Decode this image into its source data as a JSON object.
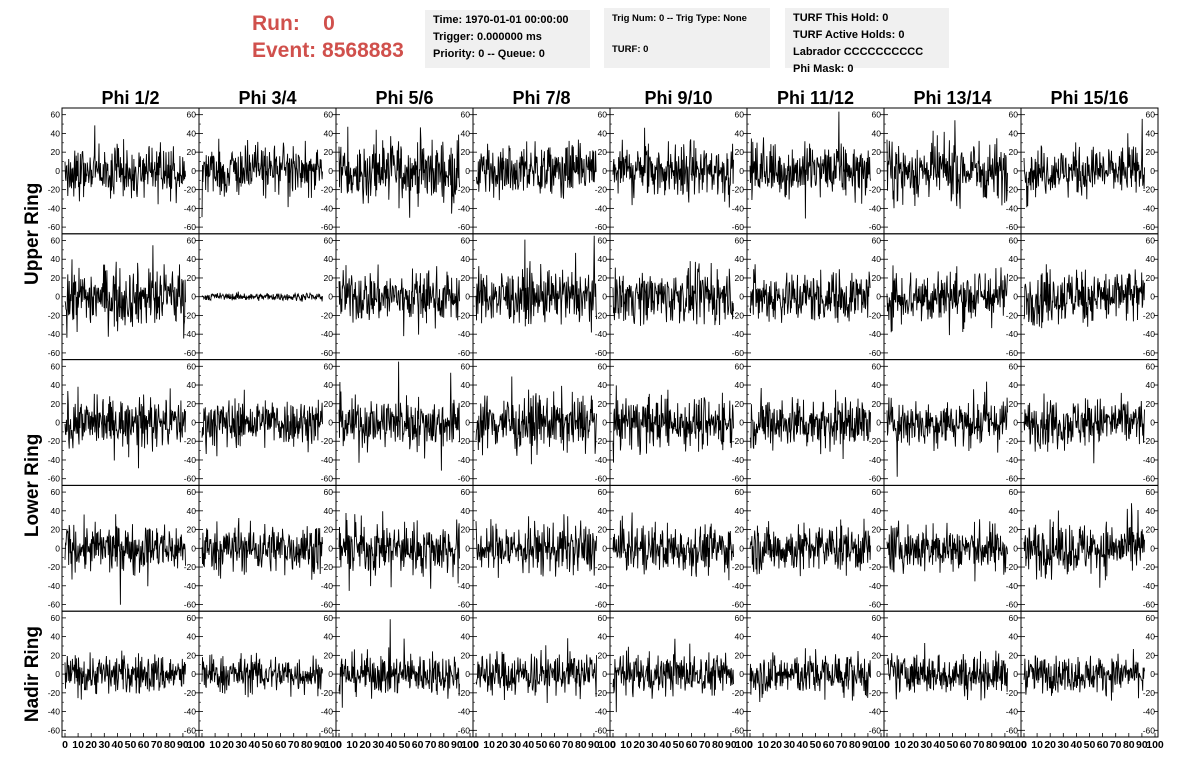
{
  "header": {
    "run_label": "Run:",
    "run_value": "0",
    "event_label": "Event:",
    "event_value": "8568883"
  },
  "info_boxes": [
    {
      "lines": [
        "Time: 1970-01-01 00:00:00",
        "Trigger: 0.000000 ms",
        "Priority: 0 -- Queue: 0"
      ]
    },
    {
      "lines": [
        "Trig Num: 0 -- Trig Type: None",
        "TURF: 0"
      ]
    },
    {
      "lines": [
        "TURF This Hold: 0",
        "TURF Active Holds: 0",
        "Labrador CCCCCCCCCC",
        "Phi Mask: 0"
      ]
    }
  ],
  "colors": {
    "header_red": "#d0504c",
    "box_bg": "#f0f0f0",
    "trace": "#000000"
  },
  "chart_data": {
    "type": "line",
    "columns": [
      "Phi 1/2",
      "Phi 3/4",
      "Phi 5/6",
      "Phi 7/8",
      "Phi 9/10",
      "Phi 11/12",
      "Phi 13/14",
      "Phi 15/16"
    ],
    "rows": [
      "Upper Ring",
      "Lower Ring",
      "Nadir Ring"
    ],
    "subrows_per_ring": [
      2,
      2,
      1
    ],
    "xlim": [
      0,
      100
    ],
    "ylim": [
      -65,
      65
    ],
    "y_ticks": [
      "60",
      "40",
      "20",
      "0",
      "-20",
      "-40",
      "-60"
    ],
    "y_tick_values": [
      60,
      40,
      20,
      0,
      -20,
      -40,
      -60
    ],
    "x_ticks": [
      "0",
      "10",
      "20",
      "30",
      "40",
      "50",
      "60",
      "70",
      "80",
      "90",
      "100"
    ],
    "x_tick_values": [
      0,
      10,
      20,
      30,
      40,
      50,
      60,
      70,
      80,
      90,
      100
    ],
    "trace_x_max": 92,
    "samples_per_trace": 260,
    "trace_amplitude_by_row": [
      [
        14,
        13,
        16,
        14,
        15,
        14,
        16,
        13
      ],
      [
        16,
        2,
        14,
        14,
        14,
        14,
        15,
        15
      ],
      [
        13,
        13,
        14,
        15,
        14,
        14,
        13,
        13
      ],
      [
        13,
        13,
        14,
        14,
        13,
        13,
        13,
        14
      ],
      [
        11,
        10,
        11,
        12,
        11,
        12,
        11,
        10
      ]
    ]
  }
}
